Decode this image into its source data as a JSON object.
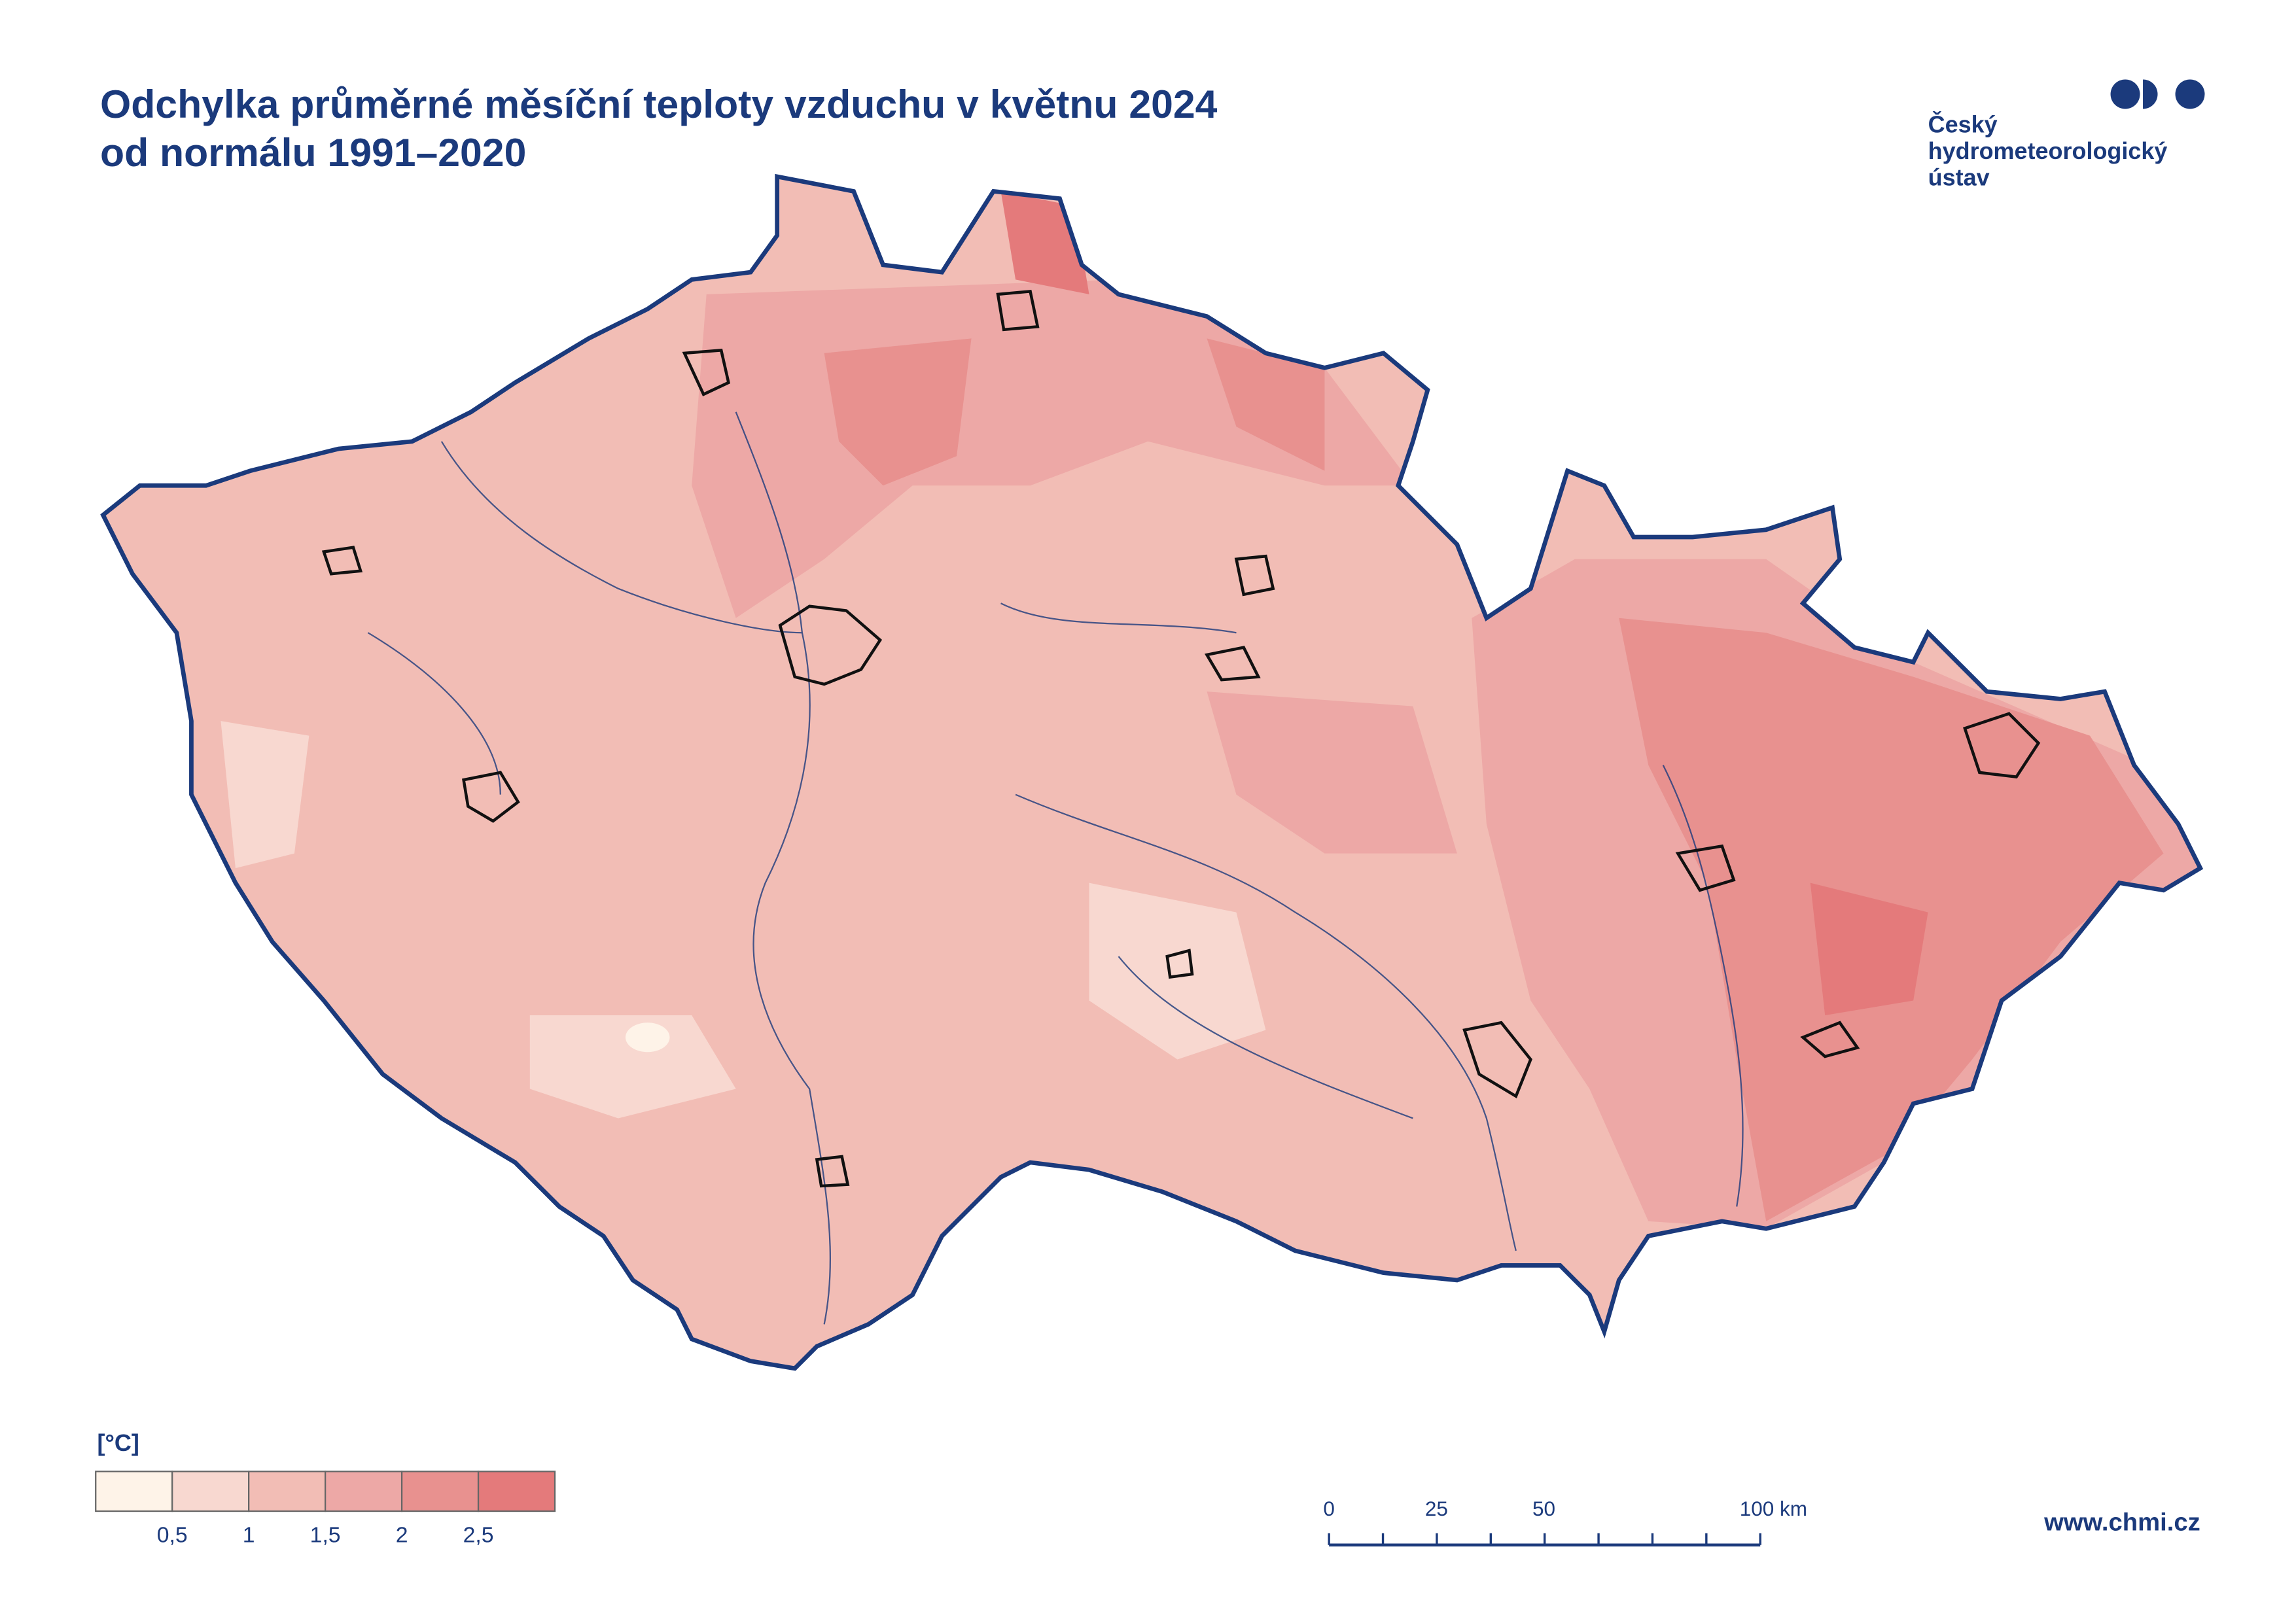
{
  "title": [
    "Odchylka průměrné měsíční teploty vzduchu v květnu 2024",
    "od normálu 1991–2020"
  ],
  "logo": [
    "Český",
    "hydrometeorologický",
    "ústav"
  ],
  "legend": {
    "unit": "[°C]",
    "colors": [
      "#fef3e8",
      "#f8d8d0",
      "#f2bdb5",
      "#eda8a6",
      "#e8918f",
      "#e47a7b"
    ],
    "labels": [
      "0,5",
      "1",
      "1,5",
      "2",
      "2,5"
    ]
  },
  "scale_bar": {
    "labels": [
      "0",
      "25",
      "50",
      "100 km"
    ]
  },
  "website": "www.chmi.cz"
}
